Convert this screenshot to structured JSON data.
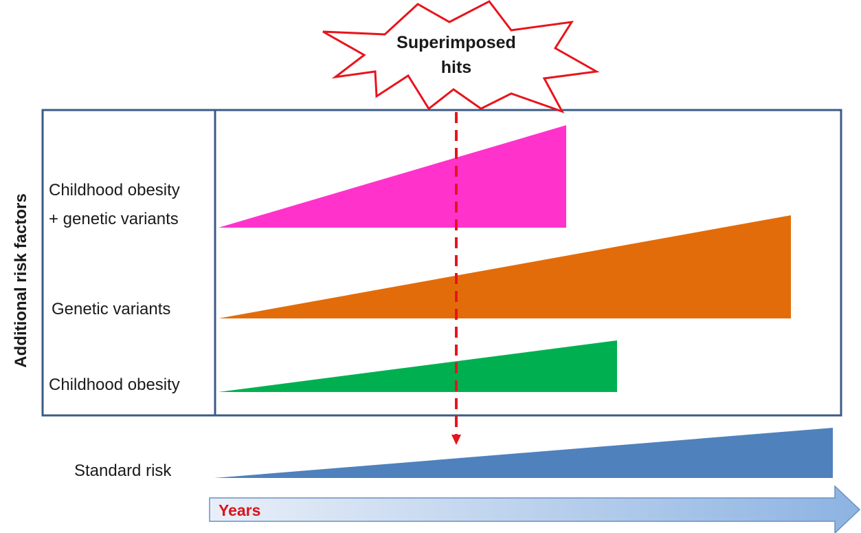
{
  "title": "",
  "burst": {
    "line1": "Superimposed",
    "line2": "hits",
    "stroke_color": "#e8141c"
  },
  "axis": {
    "y_label": "Additional risk factors",
    "x_label": "Years",
    "x_label_color": "#d9141c"
  },
  "rows": [
    {
      "label_line1": "Childhood obesity",
      "label_line2": "+ genetic variants",
      "color": "#ff33cc"
    },
    {
      "label_line1": "Genetic variants",
      "label_line2": "",
      "color": "#e36c0a"
    },
    {
      "label_line1": "Childhood obesity",
      "label_line2": "",
      "color": "#00b050"
    }
  ],
  "standard": {
    "label": "Standard risk",
    "color": "#4f81bd"
  },
  "colors": {
    "frame": "#3b5b84",
    "dashed_line": "#e8141c",
    "arrow_start": "#e9eff8",
    "arrow_end": "#8db3e2",
    "arrow_border": "#6b8fbf"
  }
}
